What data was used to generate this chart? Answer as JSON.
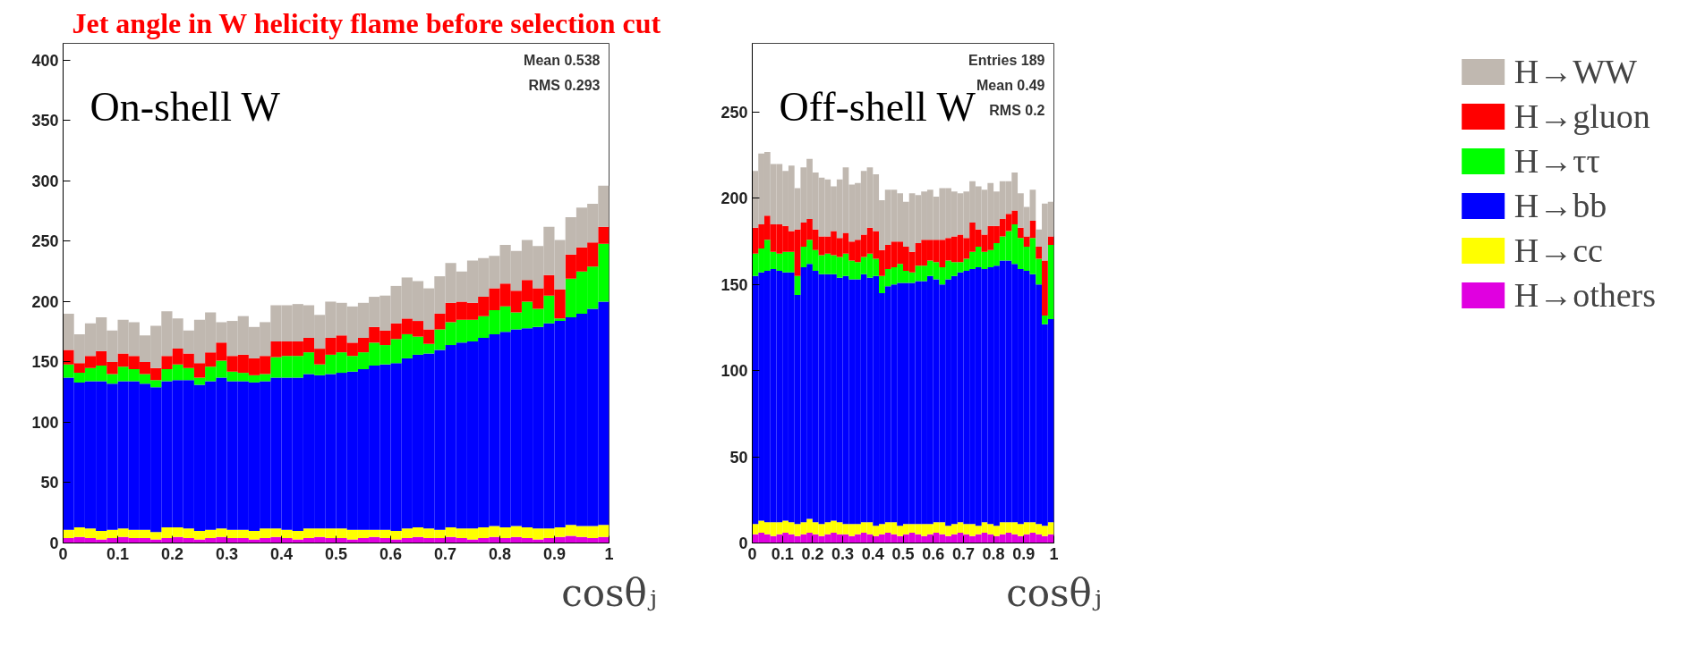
{
  "chart_data": [
    {
      "type": "bar",
      "title": "Jet angle in W helicity flame before selection cut",
      "xlabel": "cosθⱼ",
      "stacked": true,
      "annotations": [
        "On-shell W",
        "Mean 0.538",
        "RMS 0.293"
      ],
      "x": [
        0.01,
        0.03,
        0.05,
        0.07,
        0.09,
        0.11,
        0.13,
        0.15,
        0.17,
        0.19,
        0.21,
        0.23,
        0.25,
        0.27,
        0.29,
        0.31,
        0.33,
        0.35,
        0.37,
        0.39,
        0.41,
        0.43,
        0.45,
        0.47,
        0.49,
        0.51,
        0.53,
        0.55,
        0.57,
        0.59,
        0.61,
        0.63,
        0.65,
        0.67,
        0.69,
        0.71,
        0.73,
        0.75,
        0.77,
        0.79,
        0.81,
        0.83,
        0.85,
        0.87,
        0.89,
        0.91,
        0.93,
        0.95,
        0.97,
        0.99
      ],
      "xlim": [
        0,
        1
      ],
      "xticks": [
        0,
        0.1,
        0.2,
        0.3,
        0.4,
        0.5,
        0.6,
        0.7,
        0.8,
        0.9,
        1
      ],
      "ylim": [
        0,
        414
      ],
      "yticks": [
        0,
        50,
        100,
        150,
        200,
        250,
        300,
        350,
        400
      ],
      "series": [
        {
          "color": "#e000e0",
          "values": [
            4,
            5,
            4,
            3,
            4,
            5,
            4,
            4,
            3,
            4,
            5,
            4,
            3,
            4,
            5,
            4,
            4,
            3,
            4,
            5,
            4,
            3,
            4,
            5,
            4,
            4,
            3,
            4,
            5,
            4,
            3,
            4,
            5,
            4,
            4,
            5,
            4,
            3,
            4,
            5,
            4,
            5,
            4,
            3,
            4,
            5,
            6,
            5,
            4,
            5
          ]
        },
        {
          "color": "#ffff00",
          "values": [
            7,
            8,
            8,
            7,
            7,
            7,
            7,
            7,
            6,
            9,
            8,
            8,
            7,
            7,
            7,
            7,
            7,
            7,
            8,
            7,
            7,
            7,
            8,
            7,
            8,
            8,
            8,
            7,
            6,
            7,
            7,
            8,
            8,
            8,
            7,
            8,
            8,
            9,
            9,
            9,
            9,
            9,
            9,
            9,
            8,
            8,
            9,
            9,
            10,
            10
          ]
        },
        {
          "color": "#0000ff",
          "values": [
            126,
            120,
            122,
            124,
            121,
            122,
            123,
            121,
            120,
            121,
            122,
            123,
            121,
            123,
            125,
            123,
            123,
            123,
            122,
            125,
            126,
            127,
            128,
            127,
            128,
            129,
            131,
            133,
            136,
            137,
            139,
            141,
            143,
            145,
            149,
            151,
            154,
            155,
            157,
            159,
            162,
            163,
            165,
            167,
            170,
            171,
            172,
            176,
            180,
            185
          ]
        },
        {
          "color": "#00ff00",
          "values": [
            11,
            8,
            11,
            13,
            8,
            12,
            10,
            8,
            6,
            10,
            13,
            10,
            6,
            12,
            14,
            8,
            7,
            6,
            6,
            17,
            18,
            18,
            18,
            9,
            16,
            17,
            13,
            14,
            19,
            16,
            20,
            20,
            15,
            8,
            17,
            19,
            19,
            18,
            18,
            20,
            21,
            14,
            22,
            15,
            23,
            2,
            32,
            35,
            35,
            48
          ]
        },
        {
          "color": "#ff0000",
          "values": [
            12,
            8,
            10,
            12,
            10,
            11,
            11,
            10,
            10,
            11,
            13,
            12,
            12,
            12,
            15,
            13,
            15,
            14,
            15,
            13,
            12,
            12,
            12,
            13,
            14,
            14,
            11,
            12,
            13,
            12,
            13,
            13,
            13,
            12,
            13,
            16,
            15,
            14,
            16,
            18,
            19,
            18,
            18,
            17,
            17,
            24,
            20,
            20,
            20,
            14
          ]
        },
        {
          "color": "#c0b8b0",
          "values": [
            30,
            24,
            27,
            28,
            26,
            28,
            28,
            22,
            35,
            37,
            25,
            19,
            36,
            33,
            17,
            29,
            32,
            26,
            28,
            30,
            30,
            31,
            27,
            28,
            30,
            27,
            30,
            29,
            25,
            29,
            31,
            34,
            33,
            34,
            31,
            33,
            25,
            35,
            32,
            27,
            32,
            33,
            33,
            35,
            40,
            41,
            31,
            33,
            32,
            34
          ]
        }
      ]
    },
    {
      "type": "bar",
      "xlabel": "cosθⱼ",
      "stacked": true,
      "legend": "right",
      "annotations": [
        "Off-shell W",
        "Entries 189",
        "Mean 0.49",
        "RMS 0.2"
      ],
      "x": [
        0.01,
        0.03,
        0.05,
        0.07,
        0.09,
        0.11,
        0.13,
        0.15,
        0.17,
        0.19,
        0.21,
        0.23,
        0.25,
        0.27,
        0.29,
        0.31,
        0.33,
        0.35,
        0.37,
        0.39,
        0.41,
        0.43,
        0.45,
        0.47,
        0.49,
        0.51,
        0.53,
        0.55,
        0.57,
        0.59,
        0.61,
        0.63,
        0.65,
        0.67,
        0.69,
        0.71,
        0.73,
        0.75,
        0.77,
        0.79,
        0.81,
        0.83,
        0.85,
        0.87,
        0.89,
        0.91,
        0.93,
        0.95,
        0.97,
        0.99
      ],
      "xlim": [
        0,
        1
      ],
      "xticks": [
        0,
        0.1,
        0.2,
        0.3,
        0.4,
        0.5,
        0.6,
        0.7,
        0.8,
        0.9,
        1
      ],
      "ylim": [
        0,
        290
      ],
      "yticks": [
        0,
        50,
        100,
        150,
        200,
        250
      ],
      "series": [
        {
          "name": "H→others",
          "color": "#e000e0",
          "values": [
            5,
            6,
            5,
            4,
            5,
            6,
            5,
            4,
            5,
            6,
            5,
            4,
            5,
            6,
            5,
            5,
            4,
            5,
            6,
            5,
            4,
            5,
            6,
            5,
            4,
            5,
            6,
            5,
            4,
            5,
            6,
            5,
            4,
            5,
            6,
            5,
            4,
            5,
            6,
            5,
            4,
            5,
            6,
            5,
            4,
            5,
            6,
            5,
            4,
            5
          ]
        },
        {
          "name": "H→cc",
          "color": "#ffff00",
          "values": [
            6,
            7,
            7,
            8,
            7,
            7,
            7,
            7,
            7,
            8,
            7,
            7,
            7,
            7,
            7,
            6,
            7,
            6,
            6,
            7,
            6,
            6,
            6,
            7,
            6,
            6,
            5,
            6,
            7,
            6,
            6,
            7,
            6,
            6,
            6,
            6,
            7,
            5,
            6,
            6,
            6,
            7,
            6,
            7,
            7,
            7,
            6,
            6,
            6,
            7
          ]
        },
        {
          "name": "H→bb",
          "color": "#0000ff",
          "values": [
            144,
            144,
            146,
            147,
            146,
            144,
            145,
            133,
            148,
            148,
            146,
            145,
            144,
            143,
            142,
            144,
            142,
            142,
            144,
            142,
            145,
            134,
            137,
            138,
            141,
            140,
            140,
            141,
            141,
            144,
            141,
            138,
            143,
            144,
            145,
            147,
            148,
            150,
            147,
            149,
            151,
            152,
            152,
            150,
            148,
            146,
            144,
            139,
            117,
            118
          ]
        },
        {
          "name": "H→ττ",
          "color": "#00ff00",
          "values": [
            13,
            14,
            18,
            10,
            10,
            12,
            12,
            11,
            12,
            14,
            12,
            11,
            12,
            11,
            12,
            13,
            11,
            10,
            10,
            14,
            10,
            10,
            10,
            10,
            11,
            7,
            6,
            9,
            9,
            9,
            10,
            10,
            11,
            8,
            6,
            7,
            10,
            12,
            10,
            10,
            13,
            14,
            17,
            23,
            18,
            14,
            21,
            15,
            5,
            43
          ]
        },
        {
          "name": "H→gluon",
          "color": "#ff0000",
          "values": [
            15,
            14,
            14,
            16,
            17,
            15,
            12,
            27,
            14,
            12,
            12,
            11,
            10,
            14,
            11,
            12,
            11,
            13,
            13,
            15,
            16,
            15,
            14,
            15,
            13,
            14,
            12,
            13,
            15,
            12,
            13,
            16,
            13,
            15,
            16,
            12,
            17,
            10,
            10,
            14,
            10,
            10,
            10,
            8,
            6,
            6,
            10,
            7,
            32,
            5
          ]
        },
        {
          "name": "H→WW",
          "color": "#c0b8b0",
          "values": [
            33,
            41,
            37,
            35,
            35,
            32,
            38,
            24,
            32,
            35,
            33,
            34,
            33,
            26,
            34,
            38,
            33,
            33,
            37,
            35,
            33,
            29,
            32,
            30,
            28,
            26,
            34,
            28,
            28,
            29,
            25,
            30,
            29,
            26,
            24,
            27,
            24,
            25,
            26,
            25,
            20,
            22,
            19,
            22,
            20,
            17,
            18,
            10,
            33,
            20
          ]
        }
      ]
    }
  ]
}
